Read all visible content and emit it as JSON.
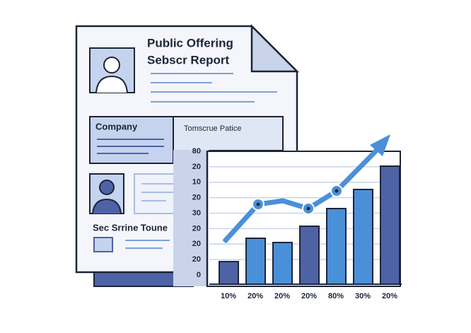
{
  "document": {
    "title": "Public Offering",
    "subtitle": "Sebscr Report",
    "company_label": "Company",
    "panel_label": "Tomscrue Patice",
    "section_label": "Sec Srrine Toune"
  },
  "chart": {
    "y_labels": [
      "80",
      "20",
      "10",
      "20",
      "30",
      "20",
      "20",
      "20",
      "0"
    ],
    "x_labels": [
      "10%",
      "20%",
      "20%",
      "20%",
      "80%",
      "30%",
      "20%"
    ]
  }
}
